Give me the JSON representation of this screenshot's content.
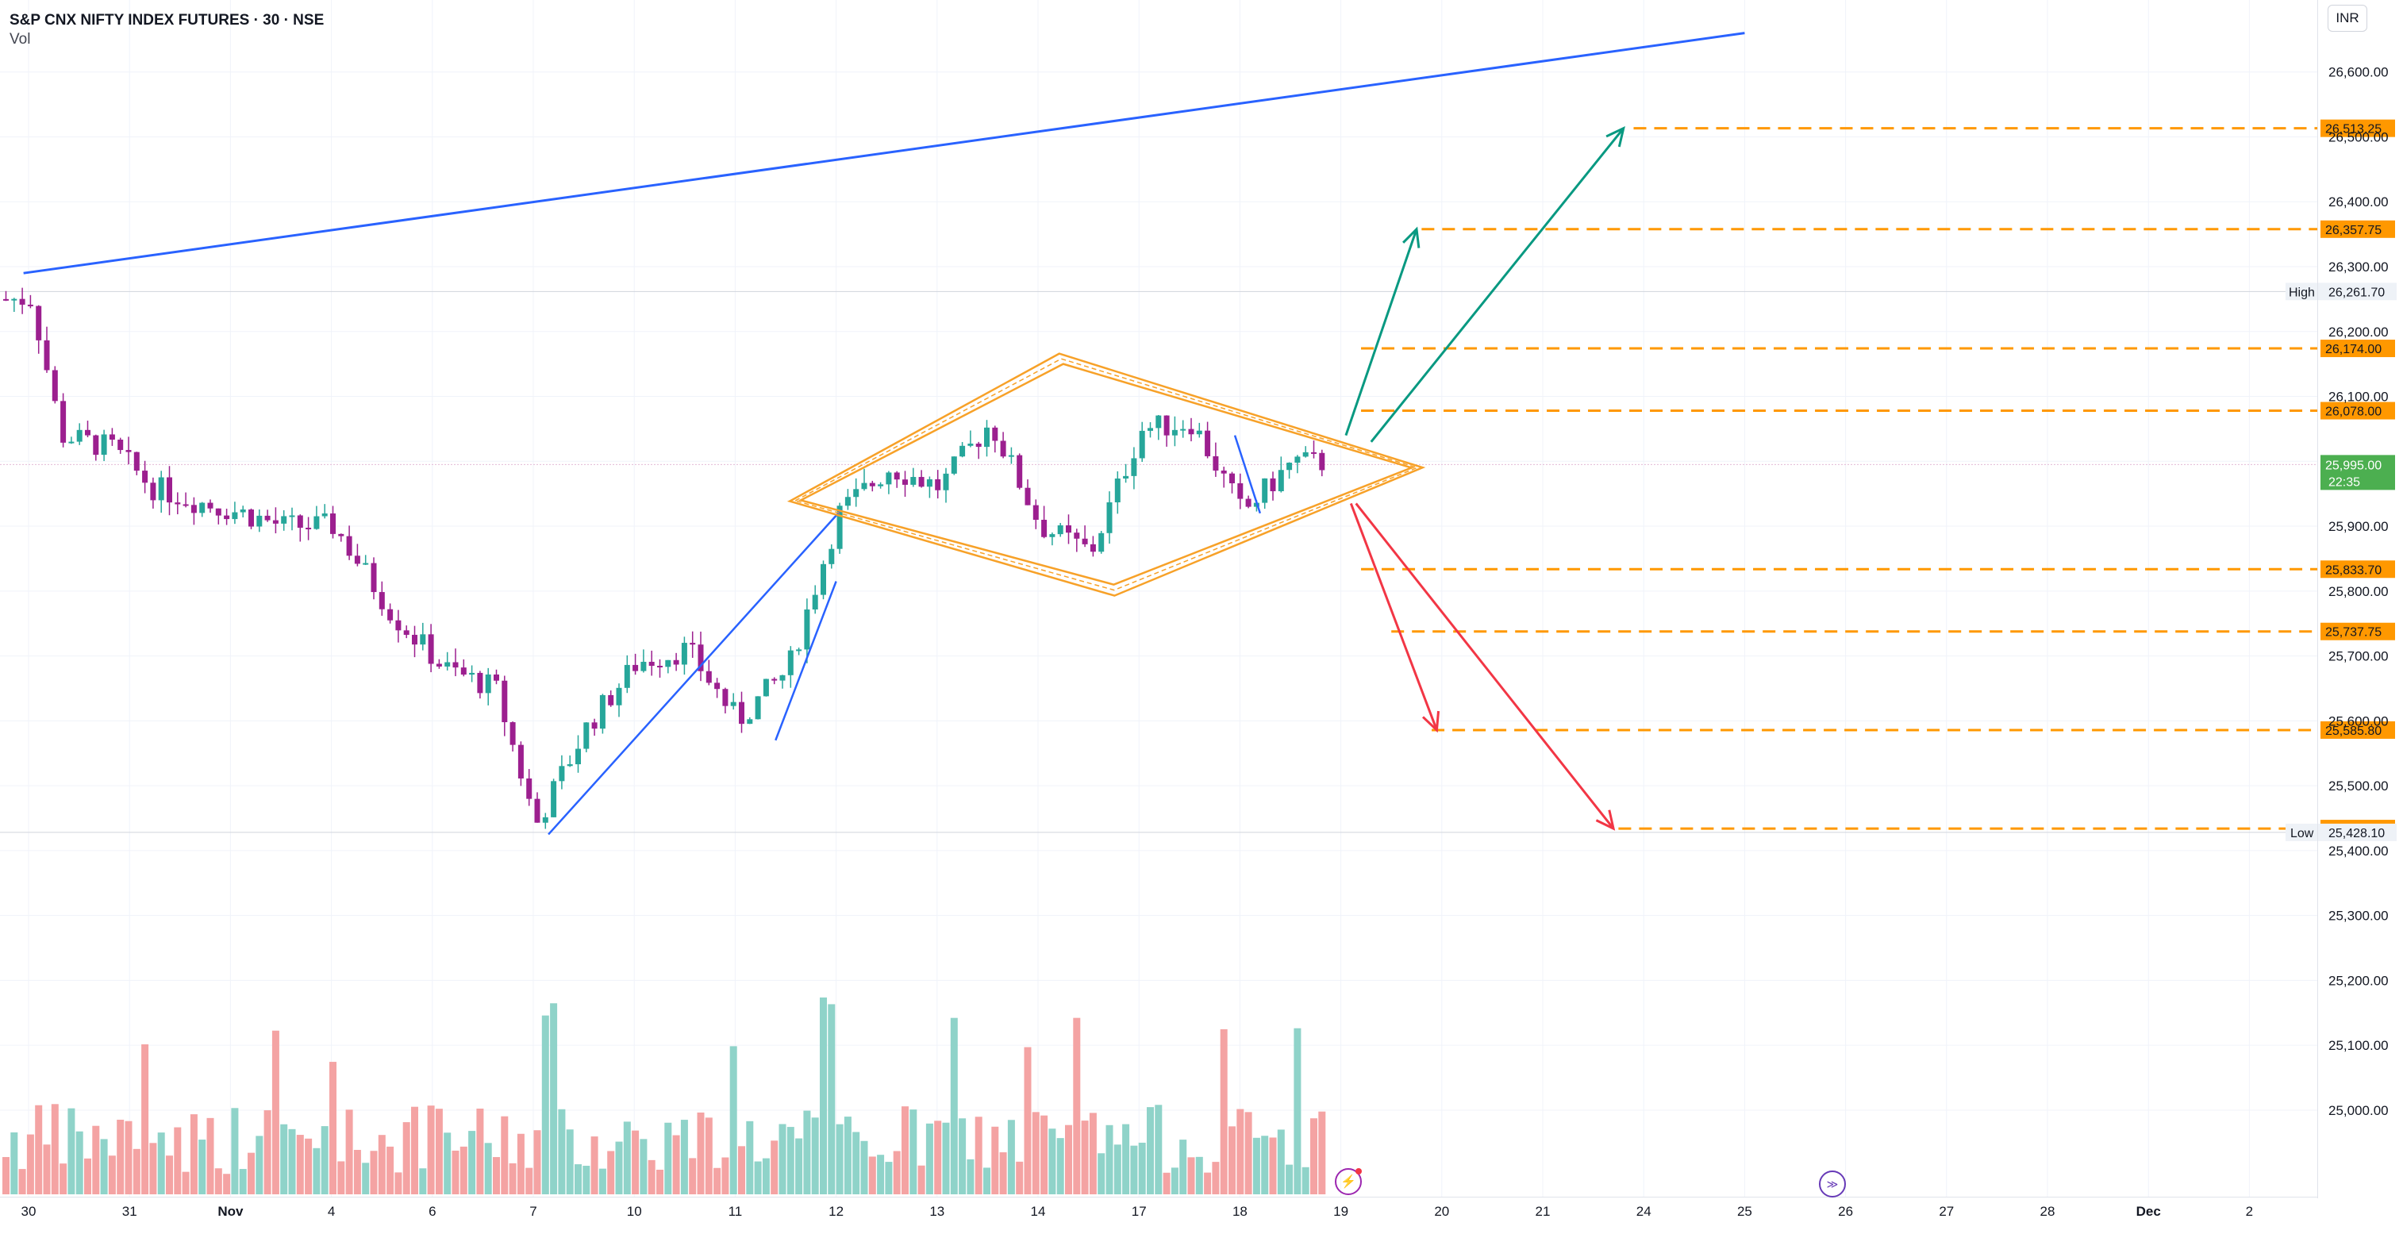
{
  "legend": {
    "title": "S&P CNX NIFTY INDEX FUTURES · 30 · NSE",
    "indicator": "Vol"
  },
  "currency": "INR",
  "colors": {
    "up": "#26a69a",
    "down": "#9c1f8f",
    "vol_up": "#8fd3c9",
    "vol_down": "#f4a3a3",
    "trend_blue": "#2962ff",
    "pattern_orange": "#f7a128",
    "target_orange": "#ff9800",
    "arrow_green": "#089981",
    "arrow_red": "#f23645",
    "grid": "#f0f3fa"
  },
  "chart_data": {
    "type": "candlestick",
    "symbol": "S&P CNX NIFTY INDEX FUTURES",
    "interval": "30",
    "exchange": "NSE",
    "ylim": [
      24940,
      26640
    ],
    "y_ticks": [
      {
        "v": 26600,
        "label": "26,600.00"
      },
      {
        "v": 26500,
        "label": "26,500.00"
      },
      {
        "v": 26400,
        "label": "26,400.00"
      },
      {
        "v": 26300,
        "label": "26,300.00"
      },
      {
        "v": 26200,
        "label": "26,200.00"
      },
      {
        "v": 26100,
        "label": "26,100.00"
      },
      {
        "v": 26000,
        "label": "26,000.00"
      },
      {
        "v": 25900,
        "label": "25,900.00"
      },
      {
        "v": 25800,
        "label": "25,800.00"
      },
      {
        "v": 25700,
        "label": "25,700.00"
      },
      {
        "v": 25600,
        "label": "25,600.00"
      },
      {
        "v": 25500,
        "label": "25,500.00"
      },
      {
        "v": 25400,
        "label": "25,400.00"
      },
      {
        "v": 25300,
        "label": "25,300.00"
      },
      {
        "v": 25200,
        "label": "25,200.00"
      },
      {
        "v": 25100,
        "label": "25,100.00"
      },
      {
        "v": 25000,
        "label": "25,000.00"
      }
    ],
    "x_ticks": [
      {
        "s": 0,
        "label": "30"
      },
      {
        "s": 1,
        "label": "31"
      },
      {
        "s": 2,
        "label": "Nov"
      },
      {
        "s": 3,
        "label": "4"
      },
      {
        "s": 4,
        "label": "6"
      },
      {
        "s": 5,
        "label": "7"
      },
      {
        "s": 6,
        "label": "10"
      },
      {
        "s": 7,
        "label": "11"
      },
      {
        "s": 8,
        "label": "12"
      },
      {
        "s": 9,
        "label": "13"
      },
      {
        "s": 10,
        "label": "14"
      },
      {
        "s": 11,
        "label": "17"
      },
      {
        "s": 12,
        "label": "18"
      },
      {
        "s": 13,
        "label": "19"
      },
      {
        "s": 14,
        "label": "20"
      },
      {
        "s": 15,
        "label": "21"
      },
      {
        "s": 16,
        "label": "24"
      },
      {
        "s": 17,
        "label": "25"
      },
      {
        "s": 18,
        "label": "26"
      },
      {
        "s": 19,
        "label": "27"
      },
      {
        "s": 20,
        "label": "28"
      },
      {
        "s": 21,
        "label": "Dec"
      },
      {
        "s": 22,
        "label": "2"
      }
    ],
    "session_anchors": [
      {
        "s": 0,
        "close": 26250,
        "low_hint": 26220
      },
      {
        "s": 0.3,
        "close": 26040
      },
      {
        "s": 0.8,
        "close": 26020
      },
      {
        "s": 1.2,
        "close": 25960
      },
      {
        "s": 1.6,
        "close": 25940
      },
      {
        "s": 2.1,
        "close": 25920
      },
      {
        "s": 2.5,
        "close": 25900
      },
      {
        "s": 3.0,
        "close": 25900
      },
      {
        "s": 3.6,
        "close": 25760
      },
      {
        "s": 4.1,
        "close": 25680
      },
      {
        "s": 4.6,
        "close": 25650
      },
      {
        "s": 5.0,
        "close": 25440
      },
      {
        "s": 5.5,
        "close": 25590
      },
      {
        "s": 6.0,
        "close": 25690
      },
      {
        "s": 6.5,
        "close": 25710
      },
      {
        "s": 7.0,
        "close": 25600
      },
      {
        "s": 7.5,
        "close": 25680
      },
      {
        "s": 8.0,
        "close": 25920
      },
      {
        "s": 8.5,
        "close": 25990
      },
      {
        "s": 9.0,
        "close": 25960
      },
      {
        "s": 9.5,
        "close": 26060
      },
      {
        "s": 10.0,
        "close": 25900
      },
      {
        "s": 10.5,
        "close": 25860
      },
      {
        "s": 11.0,
        "close": 26050
      },
      {
        "s": 11.5,
        "close": 26060
      },
      {
        "s": 12.0,
        "close": 25920
      },
      {
        "s": 12.5,
        "close": 26000
      },
      {
        "s": 13.0,
        "close": 25995
      }
    ],
    "high": {
      "label": "High",
      "value": 26261.7,
      "text": "26,261.70"
    },
    "low": {
      "label": "Low",
      "value": 25428.1,
      "text": "25,428.10"
    },
    "last_price": {
      "value": 25995.0,
      "text": "25,995.00",
      "countdown": "22:35"
    },
    "target_levels": [
      {
        "value": 26513.25,
        "text": "26,513.25"
      },
      {
        "value": 26357.75,
        "text": "26,357.75"
      },
      {
        "value": 26174.0,
        "text": "26,174.00"
      },
      {
        "value": 26078.0,
        "text": "26,078.00"
      },
      {
        "value": 25833.7,
        "text": "25,833.70"
      },
      {
        "value": 25737.75,
        "text": "25,737.75"
      },
      {
        "value": 25585.8,
        "text": "25,585.80"
      },
      {
        "value": 25434.0,
        "text": "25,434.00"
      }
    ],
    "diamond_pattern": {
      "left": {
        "s": 7.65,
        "v": 25940
      },
      "top": {
        "s": 10.25,
        "v": 26150
      },
      "right": {
        "s": 13.7,
        "v": 25990
      },
      "bottom": {
        "s": 10.75,
        "v": 25810
      }
    },
    "trend_lines": [
      {
        "from": {
          "s": -0.05,
          "v": 26290
        },
        "to": {
          "s": 17.0,
          "v": 26660
        }
      },
      {
        "from": {
          "s": 5.15,
          "v": 25425
        },
        "to": {
          "s": 8.05,
          "v": 25925
        }
      },
      {
        "from": {
          "s": 7.4,
          "v": 25570
        },
        "to": {
          "s": 8.0,
          "v": 25815
        }
      },
      {
        "from": {
          "s": 11.95,
          "v": 26040
        },
        "to": {
          "s": 12.2,
          "v": 25920
        }
      }
    ],
    "arrows": [
      {
        "color": "green",
        "from": {
          "s": 13.05,
          "v": 26040
        },
        "to": {
          "s": 13.75,
          "v": 26357.75
        }
      },
      {
        "color": "green",
        "from": {
          "s": 13.3,
          "v": 26030
        },
        "to": {
          "s": 15.8,
          "v": 26513.25
        }
      },
      {
        "color": "red",
        "from": {
          "s": 13.1,
          "v": 25935
        },
        "to": {
          "s": 13.95,
          "v": 25585.8
        }
      },
      {
        "color": "red",
        "from": {
          "s": 13.15,
          "v": 25935
        },
        "to": {
          "s": 15.7,
          "v": 25434
        }
      }
    ]
  }
}
